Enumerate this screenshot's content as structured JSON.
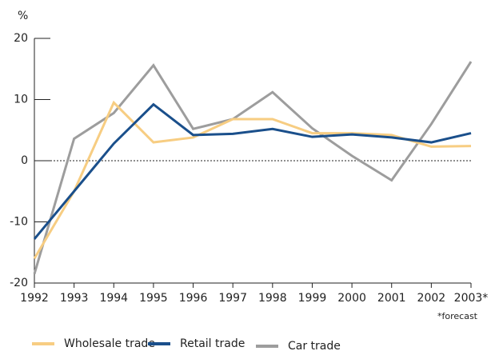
{
  "chart_data": {
    "type": "line",
    "y_unit": "%",
    "annotation": "*forecast",
    "categories": [
      "1992",
      "1993",
      "1994",
      "1995",
      "1996",
      "1997",
      "1998",
      "1999",
      "2000",
      "2001",
      "2002",
      "2003*"
    ],
    "series": [
      {
        "name": "Wholesale trade",
        "color": "#f7cd82",
        "values": [
          -16,
          -5,
          9.5,
          3,
          3.8,
          6.8,
          6.8,
          4.5,
          4.5,
          4.2,
          2.3,
          2.4
        ]
      },
      {
        "name": "Retail trade",
        "color": "#1a4f8b",
        "values": [
          -12.8,
          -5,
          2.8,
          9.2,
          4.2,
          4.4,
          5.2,
          3.9,
          4.3,
          3.8,
          3.0,
          4.5
        ]
      },
      {
        "name": "Car trade",
        "color": "#9d9d9d",
        "values": [
          -18.5,
          3.6,
          7.8,
          15.6,
          5.2,
          6.8,
          11.2,
          5.3,
          0.8,
          -3.2,
          6.0,
          16.2
        ]
      }
    ],
    "ylim": [
      -20,
      20
    ],
    "yticks": [
      -20,
      -10,
      0,
      10,
      20
    ],
    "zero_line": true
  }
}
